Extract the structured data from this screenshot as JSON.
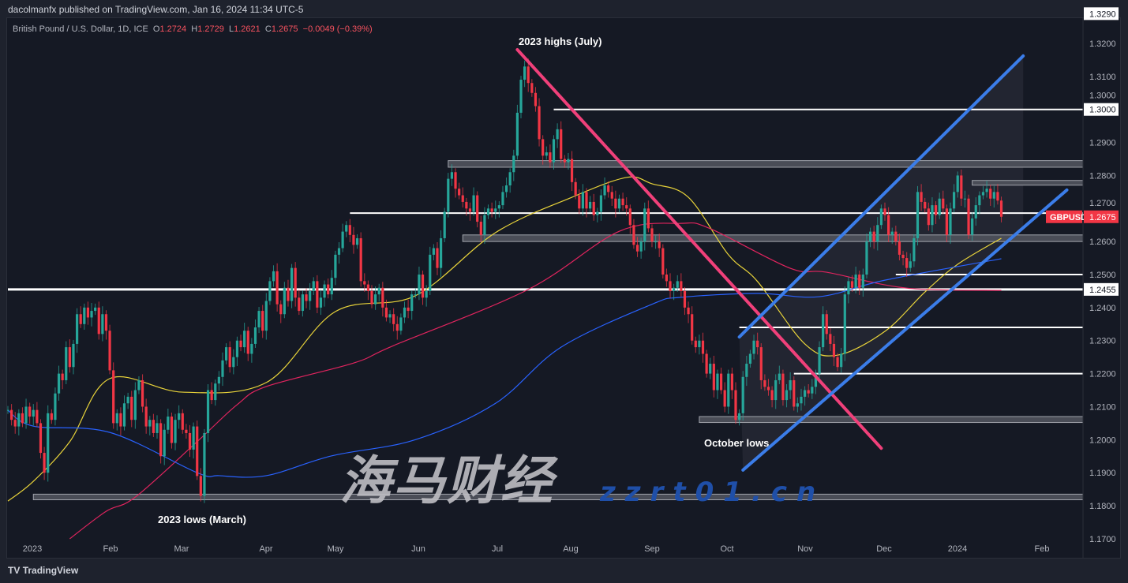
{
  "header": {
    "published": "dacolmanfx published on TradingView.com, Jan 16, 2024 11:34 UTC-5"
  },
  "legend": {
    "symbol": "British Pound / U.S. Dollar, 1D, ICE",
    "o_label": "O",
    "o": "1.2724",
    "h_label": "H",
    "h": "1.2729",
    "l_label": "L",
    "l": "1.2621",
    "c_label": "C",
    "c": "1.2675",
    "change": "−0.0049 (−0.39%)"
  },
  "footer": {
    "brand": "TradingView"
  },
  "watermark": {
    "cn": "海马财经",
    "site": "zzrt01.cn"
  },
  "chart_data": {
    "type": "candlestick",
    "symbol": "GBPUSD",
    "last_price": "1.2675",
    "ylim": [
      1.17,
      1.329
    ],
    "y_ticks": [
      "1.3200",
      "1.3100",
      "1.3000",
      "1.2900",
      "1.2800",
      "1.2700",
      "1.2600",
      "1.2500",
      "1.2400",
      "1.2300",
      "1.2200",
      "1.2100",
      "1.2000",
      "1.1900",
      "1.1800",
      "1.1700"
    ],
    "y_tick_values": [
      1.32,
      1.31,
      1.3,
      1.29,
      1.28,
      1.27,
      1.26,
      1.25,
      1.24,
      1.23,
      1.22,
      1.21,
      1.2,
      1.19,
      1.18,
      1.17
    ],
    "price_labels": [
      {
        "text": "1.3290",
        "price": 1.329
      },
      {
        "text": "1.3000",
        "price": 1.3
      },
      {
        "text": "1.2455",
        "price": 1.2455
      }
    ],
    "x_ticks": [
      "2023",
      "Feb",
      "Mar",
      "Apr",
      "May",
      "Jun",
      "Jul",
      "Aug",
      "Sep",
      "Oct",
      "Nov",
      "Dec",
      "2024",
      "Feb"
    ],
    "closes": [
      1.209,
      1.206,
      1.204,
      1.208,
      1.205,
      1.21,
      1.207,
      1.209,
      1.205,
      1.196,
      1.19,
      1.208,
      1.206,
      1.214,
      1.22,
      1.218,
      1.228,
      1.222,
      1.229,
      1.238,
      1.235,
      1.24,
      1.237,
      1.239,
      1.24,
      1.232,
      1.238,
      1.233,
      1.221,
      1.205,
      1.208,
      1.204,
      1.211,
      1.213,
      1.206,
      1.215,
      1.218,
      1.21,
      1.204,
      1.206,
      1.202,
      1.205,
      1.195,
      1.203,
      1.207,
      1.199,
      1.206,
      1.208,
      1.203,
      1.202,
      1.197,
      1.204,
      1.189,
      1.183,
      1.202,
      1.215,
      1.212,
      1.217,
      1.219,
      1.224,
      1.228,
      1.222,
      1.225,
      1.23,
      1.228,
      1.233,
      1.226,
      1.229,
      1.234,
      1.239,
      1.233,
      1.242,
      1.248,
      1.251,
      1.241,
      1.238,
      1.246,
      1.242,
      1.252,
      1.243,
      1.239,
      1.244,
      1.242,
      1.245,
      1.248,
      1.24,
      1.243,
      1.247,
      1.244,
      1.249,
      1.256,
      1.258,
      1.263,
      1.265,
      1.262,
      1.259,
      1.261,
      1.248,
      1.247,
      1.245,
      1.241,
      1.244,
      1.246,
      1.24,
      1.237,
      1.238,
      1.235,
      1.233,
      1.237,
      1.24,
      1.239,
      1.244,
      1.244,
      1.25,
      1.243,
      1.245,
      1.256,
      1.258,
      1.252,
      1.261,
      1.269,
      1.279,
      1.281,
      1.276,
      1.274,
      1.272,
      1.27,
      1.269,
      1.274,
      1.266,
      1.262,
      1.268,
      1.27,
      1.269,
      1.27,
      1.271,
      1.275,
      1.277,
      1.281,
      1.286,
      1.299,
      1.309,
      1.313,
      1.308,
      1.305,
      1.301,
      1.291,
      1.286,
      1.287,
      1.284,
      1.291,
      1.294,
      1.285,
      1.284,
      1.285,
      1.278,
      1.274,
      1.27,
      1.275,
      1.27,
      1.272,
      1.268,
      1.269,
      1.274,
      1.277,
      1.275,
      1.273,
      1.27,
      1.273,
      1.271,
      1.27,
      1.265,
      1.259,
      1.257,
      1.26,
      1.27,
      1.264,
      1.26,
      1.26,
      1.258,
      1.25,
      1.248,
      1.245,
      1.246,
      1.248,
      1.245,
      1.24,
      1.238,
      1.23,
      1.228,
      1.23,
      1.226,
      1.22,
      1.223,
      1.215,
      1.22,
      1.215,
      1.21,
      1.22,
      1.215,
      1.206,
      1.208,
      1.219,
      1.223,
      1.226,
      1.23,
      1.228,
      1.218,
      1.216,
      1.215,
      1.212,
      1.218,
      1.22,
      1.212,
      1.215,
      1.218,
      1.21,
      1.211,
      1.213,
      1.215,
      1.214,
      1.216,
      1.22,
      1.228,
      1.238,
      1.232,
      1.229,
      1.225,
      1.222,
      1.226,
      1.244,
      1.248,
      1.246,
      1.25,
      1.246,
      1.25,
      1.26,
      1.263,
      1.26,
      1.265,
      1.27,
      1.268,
      1.262,
      1.263,
      1.26,
      1.256,
      1.255,
      1.252,
      1.254,
      1.261,
      1.275,
      1.272,
      1.27,
      1.265,
      1.271,
      1.268,
      1.273,
      1.27,
      1.262,
      1.27,
      1.275,
      1.28,
      1.273,
      1.273,
      1.262,
      1.267,
      1.271,
      1.274,
      1.275,
      1.276,
      1.273,
      1.275,
      1.2724,
      1.2675
    ],
    "moving_averages": [
      {
        "color": "#e8d33a",
        "points": [
          [
            0,
            1.1814
          ],
          [
            7,
            1.1874
          ],
          [
            17,
            1.1994
          ],
          [
            28,
            1.2185
          ],
          [
            48,
            1.2144
          ],
          [
            71,
            1.2173
          ],
          [
            90,
            1.2388
          ],
          [
            112,
            1.2436
          ],
          [
            134,
            1.2627
          ],
          [
            155,
            1.2734
          ],
          [
            170,
            1.2794
          ],
          [
            177,
            1.2775
          ],
          [
            187,
            1.2734
          ],
          [
            198,
            1.256
          ],
          [
            206,
            1.2479
          ],
          [
            219,
            1.229
          ],
          [
            228,
            1.2256
          ],
          [
            241,
            1.2328
          ],
          [
            252,
            1.2447
          ],
          [
            261,
            1.2531
          ],
          [
            273,
            1.261
          ]
        ]
      },
      {
        "color": "#e0245e",
        "points": [
          [
            17,
            1.17
          ],
          [
            27,
            1.1783
          ],
          [
            35,
            1.1826
          ],
          [
            52,
            1.1994
          ],
          [
            63,
            1.2106
          ],
          [
            71,
            1.2161
          ],
          [
            95,
            1.2232
          ],
          [
            106,
            1.2285
          ],
          [
            143,
            1.2455
          ],
          [
            168,
            1.2631
          ],
          [
            185,
            1.2655
          ],
          [
            193,
            1.2639
          ],
          [
            215,
            1.2519
          ],
          [
            225,
            1.2507
          ],
          [
            247,
            1.2459
          ],
          [
            273,
            1.2452
          ]
        ]
      },
      {
        "color": "#2962ff",
        "points": [
          [
            0,
            1.2089
          ],
          [
            7,
            1.2041
          ],
          [
            28,
            1.2022
          ],
          [
            52,
            1.19
          ],
          [
            58,
            1.1891
          ],
          [
            71,
            1.1891
          ],
          [
            89,
            1.1951
          ],
          [
            112,
            1.2
          ],
          [
            134,
            1.211
          ],
          [
            152,
            1.228
          ],
          [
            177,
            1.241
          ],
          [
            185,
            1.2431
          ],
          [
            206,
            1.2443
          ],
          [
            223,
            1.2433
          ],
          [
            241,
            1.2483
          ],
          [
            273,
            1.2548
          ]
        ]
      }
    ],
    "levels": [
      {
        "type": "line",
        "price": 1.3,
        "from": 150
      },
      {
        "type": "line",
        "price": 1.2686,
        "from": 94
      },
      {
        "type": "line",
        "price": 1.25,
        "from": 244
      },
      {
        "type": "line",
        "price": 1.2455,
        "from": 0,
        "thick": true
      },
      {
        "type": "line",
        "price": 1.234,
        "from": 201
      },
      {
        "type": "line",
        "price": 1.22,
        "from": 216
      },
      {
        "type": "zone",
        "top": 1.2845,
        "bottom": 1.2825,
        "from": 121
      },
      {
        "type": "zone",
        "top": 1.2785,
        "bottom": 1.2772,
        "from": 265
      },
      {
        "type": "zone",
        "top": 1.262,
        "bottom": 1.26,
        "from": 125
      },
      {
        "type": "zone",
        "top": 1.207,
        "bottom": 1.2052,
        "from": 190
      },
      {
        "type": "zone",
        "top": 1.1835,
        "bottom": 1.1818,
        "from": 7
      }
    ],
    "trendlines": [
      {
        "color": "#f0407a",
        "from": [
          140,
          1.3181
        ],
        "to": [
          240,
          1.1974
        ]
      },
      {
        "color": "#3b7de9",
        "from": [
          201,
          1.2311
        ],
        "to": [
          279,
          1.3162
        ]
      },
      {
        "color": "#3b7de9",
        "from": [
          202,
          1.1908
        ],
        "to": [
          291,
          1.2756
        ]
      }
    ],
    "annotations": [
      {
        "text": "2023 highs (July)"
      },
      {
        "text": "October lows"
      },
      {
        "text": "2023 lows (March)"
      }
    ],
    "colors": {
      "up": "#26a69a",
      "down": "#f23645",
      "background": "#151924"
    }
  }
}
